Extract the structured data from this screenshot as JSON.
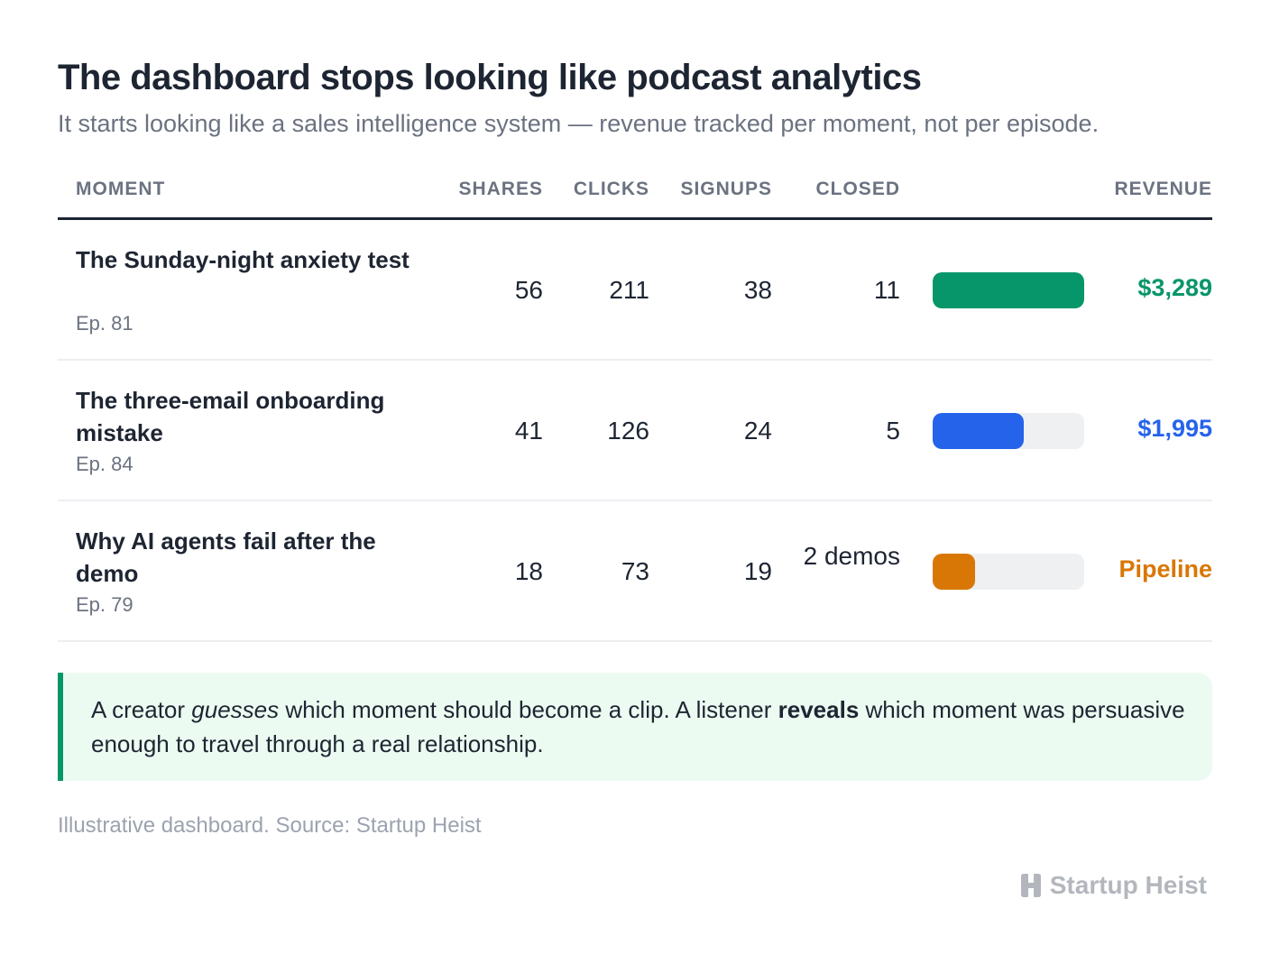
{
  "title": "The dashboard stops looking like podcast analytics",
  "subtitle": "It starts looking like a sales intelligence system — revenue tracked per moment, not per episode.",
  "table": {
    "headers": {
      "moment": "MOMENT",
      "shares": "SHARES",
      "clicks": "CLICKS",
      "signups": "SIGNUPS",
      "closed": "CLOSED",
      "revenue": "REVENUE"
    },
    "rows": [
      {
        "title": "The Sunday-night anxiety test",
        "episode": "Ep. 81",
        "shares": "56",
        "clicks": "211",
        "signups": "38",
        "closed": "11",
        "revenue": "$3,289",
        "bar_fraction": 1.0,
        "color": "#069669"
      },
      {
        "title": "The three-email onboarding mistake",
        "episode": "Ep. 84",
        "shares": "41",
        "clicks": "126",
        "signups": "24",
        "closed": "5",
        "revenue": "$1,995",
        "bar_fraction": 0.6,
        "color": "#2563eb"
      },
      {
        "title": "Why AI agents fail after the demo",
        "episode": "Ep. 79",
        "shares": "18",
        "clicks": "73",
        "signups": "19",
        "closed": "2 demos",
        "revenue": "Pipeline",
        "bar_fraction": 0.28,
        "color": "#d97706"
      }
    ]
  },
  "note": {
    "part1": "A creator ",
    "em": "guesses",
    "part2": " which moment should become a clip. A listener ",
    "strong": "reveals",
    "part3": " which moment was persuasive enough to travel through a real relationship."
  },
  "source": "Illustrative dashboard. Source: Startup Heist",
  "brand": {
    "name": "Startup Heist",
    "icon": "startup-heist-logo-icon",
    "color": "#b3b7bd"
  }
}
